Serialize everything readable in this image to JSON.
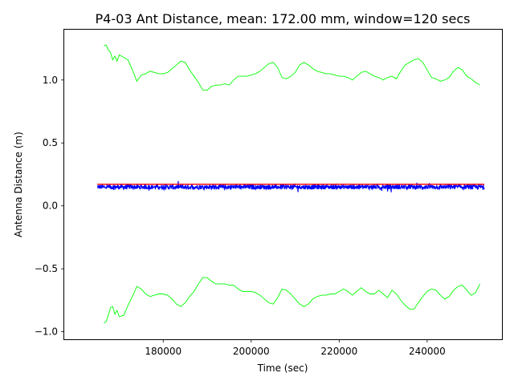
{
  "chart_data": {
    "type": "line",
    "title": "P4-03 Ant Distance, mean: 172.00 mm, window=120 secs",
    "xlabel": "Time (sec)",
    "ylabel": "Antenna Distance (m)",
    "xlim": [
      157500,
      257000
    ],
    "ylim": [
      -1.06,
      1.4
    ],
    "xticks": [
      180000,
      200000,
      220000,
      240000
    ],
    "xtick_labels": [
      "180000",
      "200000",
      "220000",
      "240000"
    ],
    "yticks": [
      -1.0,
      -0.5,
      0.0,
      0.5,
      1.0
    ],
    "ytick_labels": [
      "−1.0",
      "−0.5",
      "0.0",
      "0.5",
      "1.0"
    ],
    "grid": false,
    "series": [
      {
        "role": "measured",
        "color": "#0000ff",
        "x_range": [
          165000,
          253000
        ],
        "center": 0.15,
        "noise": 0.018
      },
      {
        "role": "mean",
        "color": "#ff0000",
        "x": [
          165000,
          253000
        ],
        "y": [
          0.172,
          0.172
        ]
      },
      {
        "role": "upper-band",
        "color": "#00ff00",
        "x": [
          166500,
          167000,
          167500,
          168000,
          168500,
          169000,
          169500,
          170000,
          171000,
          172000,
          173000,
          174000,
          175000,
          176000,
          177000,
          178000,
          179000,
          180000,
          181000,
          182000,
          183000,
          184000,
          185000,
          186000,
          187000,
          188000,
          189000,
          190000,
          191000,
          192000,
          193000,
          194000,
          195000,
          196000,
          197000,
          198000,
          199000,
          200000,
          201000,
          202000,
          203000,
          204000,
          205000,
          206000,
          207000,
          208000,
          209000,
          210000,
          211000,
          212000,
          213000,
          214000,
          215000,
          216000,
          217000,
          218000,
          219000,
          220000,
          221000,
          222000,
          223000,
          224000,
          225000,
          226000,
          227000,
          228000,
          229000,
          230000,
          231000,
          232000,
          233000,
          234000,
          235000,
          236000,
          237000,
          238000,
          239000,
          240000,
          241000,
          242000,
          243000,
          244000,
          245000,
          246000,
          247000,
          248000,
          249000,
          250000,
          251000,
          252000
        ],
        "y": [
          1.27,
          1.28,
          1.24,
          1.22,
          1.16,
          1.19,
          1.15,
          1.2,
          1.18,
          1.16,
          1.08,
          0.99,
          1.04,
          1.05,
          1.07,
          1.06,
          1.05,
          1.05,
          1.06,
          1.09,
          1.12,
          1.15,
          1.14,
          1.08,
          1.03,
          0.98,
          0.92,
          0.92,
          0.95,
          0.96,
          0.96,
          0.97,
          0.96,
          1.0,
          1.03,
          1.03,
          1.03,
          1.04,
          1.05,
          1.07,
          1.1,
          1.13,
          1.14,
          1.1,
          1.02,
          1.01,
          1.03,
          1.06,
          1.12,
          1.14,
          1.12,
          1.09,
          1.07,
          1.06,
          1.05,
          1.05,
          1.04,
          1.03,
          1.03,
          1.02,
          1.0,
          1.03,
          1.06,
          1.07,
          1.05,
          1.03,
          1.02,
          1.0,
          1.02,
          1.03,
          1.01,
          1.07,
          1.12,
          1.14,
          1.16,
          1.17,
          1.14,
          1.08,
          1.02,
          1.01,
          0.99,
          1.0,
          1.02,
          1.07,
          1.1,
          1.08,
          1.03,
          1.01,
          0.98,
          0.96
        ]
      },
      {
        "role": "lower-band",
        "color": "#00ff00",
        "x": [
          166500,
          167000,
          167500,
          168000,
          168500,
          169000,
          169500,
          170000,
          171000,
          172000,
          173000,
          174000,
          175000,
          176000,
          177000,
          178000,
          179000,
          180000,
          181000,
          182000,
          183000,
          184000,
          185000,
          186000,
          187000,
          188000,
          189000,
          190000,
          191000,
          192000,
          193000,
          194000,
          195000,
          196000,
          197000,
          198000,
          199000,
          200000,
          201000,
          202000,
          203000,
          204000,
          205000,
          206000,
          207000,
          208000,
          209000,
          210000,
          211000,
          212000,
          213000,
          214000,
          215000,
          216000,
          217000,
          218000,
          219000,
          220000,
          221000,
          222000,
          223000,
          224000,
          225000,
          226000,
          227000,
          228000,
          229000,
          230000,
          231000,
          232000,
          233000,
          234000,
          235000,
          236000,
          237000,
          238000,
          239000,
          240000,
          241000,
          242000,
          243000,
          244000,
          245000,
          246000,
          247000,
          248000,
          249000,
          250000,
          251000,
          252000
        ],
        "y": [
          -0.93,
          -0.92,
          -0.87,
          -0.81,
          -0.8,
          -0.86,
          -0.83,
          -0.88,
          -0.87,
          -0.79,
          -0.72,
          -0.64,
          -0.66,
          -0.7,
          -0.72,
          -0.71,
          -0.7,
          -0.7,
          -0.71,
          -0.74,
          -0.78,
          -0.8,
          -0.77,
          -0.72,
          -0.68,
          -0.62,
          -0.57,
          -0.57,
          -0.6,
          -0.62,
          -0.62,
          -0.62,
          -0.63,
          -0.63,
          -0.66,
          -0.68,
          -0.68,
          -0.68,
          -0.69,
          -0.71,
          -0.74,
          -0.77,
          -0.78,
          -0.73,
          -0.66,
          -0.67,
          -0.7,
          -0.74,
          -0.78,
          -0.8,
          -0.78,
          -0.74,
          -0.72,
          -0.71,
          -0.71,
          -0.7,
          -0.7,
          -0.68,
          -0.66,
          -0.68,
          -0.71,
          -0.68,
          -0.65,
          -0.68,
          -0.7,
          -0.7,
          -0.67,
          -0.7,
          -0.73,
          -0.67,
          -0.7,
          -0.75,
          -0.79,
          -0.82,
          -0.82,
          -0.77,
          -0.72,
          -0.68,
          -0.66,
          -0.67,
          -0.71,
          -0.74,
          -0.72,
          -0.67,
          -0.64,
          -0.63,
          -0.67,
          -0.71,
          -0.69,
          -0.62
        ]
      }
    ]
  }
}
